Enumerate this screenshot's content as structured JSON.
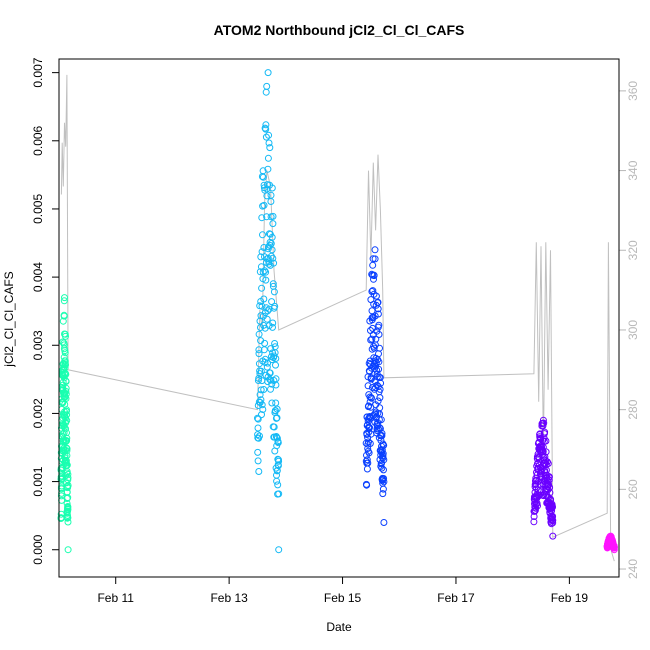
{
  "chart_data": {
    "type": "scatter",
    "title": "ATOM2 Northbound jCl2_Cl_Cl_CAFS",
    "xlabel": "Date",
    "ylabel": "jCl2_Cl_Cl_CAFS",
    "x_ticks": [
      "Feb 11",
      "Feb 13",
      "Feb 15",
      "Feb 17",
      "Feb 19"
    ],
    "y_ticks": [
      "0.000",
      "0.001",
      "0.002",
      "0.003",
      "0.004",
      "0.005",
      "0.006",
      "0.007"
    ],
    "y2_ticks": [
      "240",
      "260",
      "280",
      "300",
      "320",
      "340",
      "360"
    ],
    "x_range": [
      "Feb 10 00:00",
      "Feb 19 21:00"
    ],
    "ylim": [
      -0.0004,
      0.0072
    ],
    "y2lim": [
      238,
      368
    ],
    "grid": false,
    "legend": "none",
    "series": [
      {
        "color": "#1affb0",
        "clusters": [
          {
            "x_start": "Feb 10 00:50",
            "x_end": "Feb 10 03:50",
            "y_low": 0.0,
            "y_high": 0.0037
          }
        ]
      },
      {
        "color": "#14b9f5",
        "clusters": [
          {
            "x_start": "Feb 13 12:00",
            "x_end": "Feb 13 21:00",
            "y_low": 0.0,
            "y_high": 0.007
          }
        ]
      },
      {
        "color": "#0a40ff",
        "clusters": [
          {
            "x_start": "Feb 15 10:00",
            "x_end": "Feb 15 17:30",
            "y_low": 0.0004,
            "y_high": 0.0044
          }
        ]
      },
      {
        "color": "#6a00ff",
        "clusters": [
          {
            "x_start": "Feb 18 09:00",
            "x_end": "Feb 18 17:00",
            "y_low": 0.0002,
            "y_high": 0.0019
          }
        ]
      },
      {
        "color": "#ff14ff",
        "clusters": [
          {
            "x_start": "Feb 19 16:00",
            "x_end": "Feb 19 19:00",
            "y_low": 0.0,
            "y_high": 0.0002
          }
        ]
      }
    ],
    "secondary_line": {
      "color": "#c0c0c0",
      "axis": "right",
      "points": [
        [
          "Feb 10 01:00",
          334
        ],
        [
          "Feb 10 01:20",
          347
        ],
        [
          "Feb 10 01:50",
          336
        ],
        [
          "Feb 10 02:20",
          352
        ],
        [
          "Feb 10 02:50",
          346
        ],
        [
          "Feb 10 03:20",
          364
        ],
        [
          "Feb 10 03:50",
          290
        ],
        [
          "Feb 13 12:00",
          280
        ],
        [
          "Feb 13 13:00",
          305
        ],
        [
          "Feb 13 14:00",
          300
        ],
        [
          "Feb 13 15:00",
          332
        ],
        [
          "Feb 13 16:00",
          340
        ],
        [
          "Feb 13 17:30",
          336
        ],
        [
          "Feb 13 19:00",
          315
        ],
        [
          "Feb 13 21:00",
          300
        ],
        [
          "Feb 15 10:00",
          310
        ],
        [
          "Feb 15 11:00",
          340
        ],
        [
          "Feb 15 12:00",
          318
        ],
        [
          "Feb 15 13:00",
          342
        ],
        [
          "Feb 15 14:00",
          325
        ],
        [
          "Feb 15 15:00",
          344
        ],
        [
          "Feb 15 16:00",
          330
        ],
        [
          "Feb 15 17:00",
          310
        ],
        [
          "Feb 15 17:30",
          288
        ],
        [
          "Feb 18 09:00",
          289
        ],
        [
          "Feb 18 10:00",
          322
        ],
        [
          "Feb 18 11:00",
          282
        ],
        [
          "Feb 18 12:00",
          321
        ],
        [
          "Feb 18 13:00",
          270
        ],
        [
          "Feb 18 14:00",
          322
        ],
        [
          "Feb 18 15:00",
          285
        ],
        [
          "Feb 18 16:00",
          320
        ],
        [
          "Feb 18 17:00",
          248
        ],
        [
          "Feb 19 16:00",
          254
        ],
        [
          "Feb 19 16:30",
          322
        ],
        [
          "Feb 19 17:30",
          245
        ],
        [
          "Feb 19 19:00",
          242
        ]
      ]
    }
  }
}
